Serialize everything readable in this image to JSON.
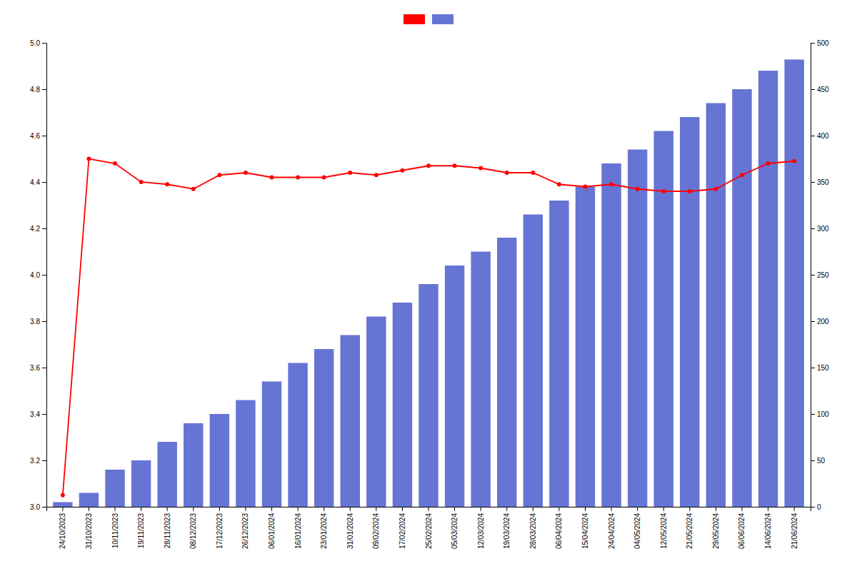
{
  "chart_data": {
    "type": "bar",
    "categories": [
      "24/10/2023",
      "31/10/2023",
      "10/11/2023",
      "19/11/2023",
      "28/11/2023",
      "08/12/2023",
      "17/12/2023",
      "26/12/2023",
      "06/01/2024",
      "16/01/2024",
      "23/01/2024",
      "31/01/2024",
      "09/02/2024",
      "17/02/2024",
      "25/02/2024",
      "05/03/2024",
      "12/03/2024",
      "19/03/2024",
      "28/03/2024",
      "06/04/2024",
      "15/04/2024",
      "24/04/2024",
      "04/05/2024",
      "12/05/2024",
      "21/05/2024",
      "29/05/2024",
      "06/06/2024",
      "14/06/2024",
      "21/06/2024"
    ],
    "series": [
      {
        "type": "line",
        "color": "#ff0000",
        "marker": "circle",
        "values": [
          3.05,
          4.5,
          4.48,
          4.4,
          4.39,
          4.37,
          4.43,
          4.44,
          4.42,
          4.42,
          4.42,
          4.44,
          4.43,
          4.45,
          4.47,
          4.47,
          4.46,
          4.44,
          4.44,
          4.39,
          4.38,
          4.39,
          4.37,
          4.36,
          4.36,
          4.37,
          4.43,
          4.48,
          4.49
        ]
      },
      {
        "type": "bar",
        "axis": "y2",
        "color": "#6674d4",
        "values": [
          5,
          15,
          40,
          50,
          70,
          90,
          100,
          115,
          135,
          155,
          170,
          185,
          205,
          220,
          240,
          260,
          275,
          290,
          315,
          330,
          345,
          370,
          385,
          405,
          420,
          435,
          450,
          470,
          482
        ]
      }
    ],
    "ylim": [
      3.0,
      5.0
    ],
    "yticks": [
      {
        "value": 3.0,
        "label": "3.0"
      },
      3.2,
      3.4,
      3.6,
      3.8,
      {
        "value": 4.0,
        "label": "4.0"
      },
      4.2,
      4.4,
      4.6,
      4.8,
      {
        "value": 5.0,
        "label": "5.0"
      }
    ],
    "y2lim": [
      0,
      500
    ],
    "y2ticks": [
      0,
      50,
      100,
      150,
      200,
      250,
      300,
      350,
      400,
      450,
      500
    ],
    "grid": false,
    "legend": "top"
  }
}
